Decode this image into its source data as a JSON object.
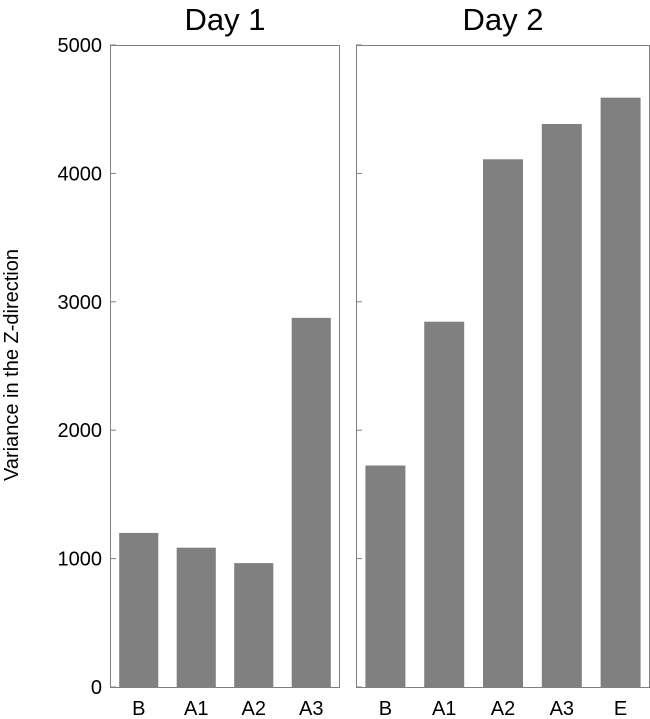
{
  "chart_data": {
    "type": "bar",
    "ylabel": "Variance in the Z-direction",
    "ylim": [
      0,
      5000
    ],
    "yticks": [
      "0",
      "1000",
      "2000",
      "3000",
      "4000",
      "5000"
    ],
    "bar_color": "#808080",
    "frame_color": "#808080",
    "grid": false,
    "panels": [
      {
        "title": "Day 1",
        "categories": [
          "B",
          "A1",
          "A2",
          "A3"
        ],
        "values": [
          1200,
          1085,
          965,
          2875
        ]
      },
      {
        "title": "Day 2",
        "categories": [
          "B",
          "A1",
          "A2",
          "A3",
          "E"
        ],
        "values": [
          1725,
          2845,
          4110,
          4385,
          4590
        ]
      }
    ]
  }
}
